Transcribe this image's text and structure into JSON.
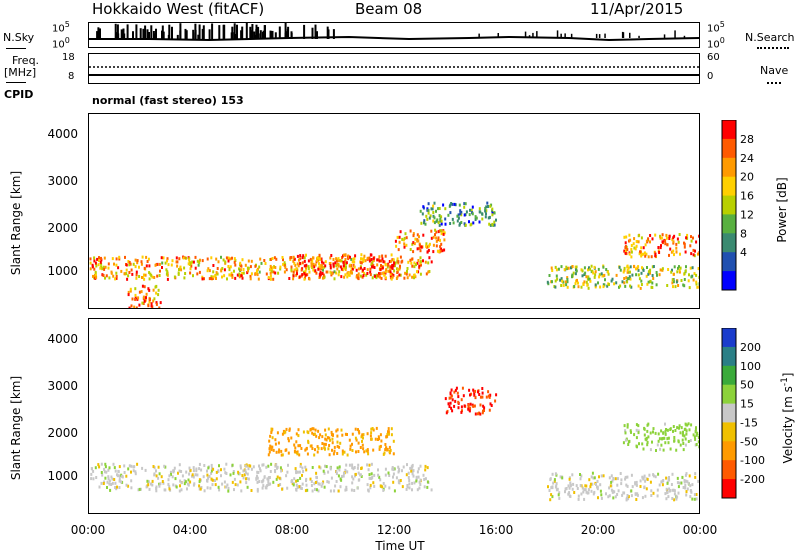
{
  "header": {
    "station": "Hokkaido West (fitACF)",
    "beam": "Beam 08",
    "date": "11/Apr/2015"
  },
  "nsky": {
    "label": "N.Sky",
    "left_ticks": [
      "10^5",
      "10^0"
    ],
    "right_ticks": [
      "10^5",
      "10^0"
    ],
    "right_label": "N.Search"
  },
  "freq": {
    "label": "Freq.",
    "unit": "[MHz]",
    "left_ticks": [
      "18",
      "8"
    ],
    "right_ticks": [
      "60",
      "0"
    ],
    "right_label": "Nave"
  },
  "cpid": {
    "label": "CPID",
    "text": "normal (fast stereo) 153"
  },
  "time_axis": {
    "label": "Time UT",
    "ticks": [
      "00:00",
      "04:00",
      "08:00",
      "12:00",
      "16:00",
      "20:00",
      "00:00"
    ]
  },
  "chart_data": [
    {
      "type": "heatmap",
      "title": "",
      "xlabel": "Time UT",
      "ylabel": "Slant Range [km]",
      "ylim": [
        180,
        4500
      ],
      "xlim": [
        "00:00",
        "24:00"
      ],
      "yticks": [
        "4000",
        "3000",
        "2000",
        "1000"
      ],
      "colorbar": {
        "label": "Power [dB]",
        "ticks": [
          "28",
          "24",
          "20",
          "16",
          "12",
          "8",
          "4"
        ],
        "colors": [
          "#ff0000",
          "#ff5a00",
          "#ff9a00",
          "#ffd000",
          "#b8d000",
          "#58b040",
          "#3a8a70",
          "#2050b0",
          "#0000ff"
        ]
      },
      "bands": [
        {
          "t_start": 0.0,
          "t_end": 13.5,
          "range_center": 1100,
          "level": 20
        },
        {
          "t_start": 1.5,
          "t_end": 2.8,
          "range_center": 450,
          "level": 22
        },
        {
          "t_start": 8.0,
          "t_end": 12.0,
          "range_center": 1150,
          "level": 25
        },
        {
          "t_start": 12.0,
          "t_end": 14.0,
          "range_center": 1700,
          "level": 22
        },
        {
          "t_start": 13.0,
          "t_end": 16.0,
          "range_center": 2300,
          "level": 8
        },
        {
          "t_start": 18.0,
          "t_end": 24.0,
          "range_center": 900,
          "level": 14
        },
        {
          "t_start": 21.0,
          "t_end": 24.0,
          "range_center": 1600,
          "level": 22
        }
      ]
    },
    {
      "type": "heatmap",
      "title": "",
      "xlabel": "Time UT",
      "ylabel": "Slant Range [km]",
      "ylim": [
        180,
        4500
      ],
      "xlim": [
        "00:00",
        "24:00"
      ],
      "yticks": [
        "4000",
        "3000",
        "2000",
        "1000"
      ],
      "colorbar": {
        "label": "Velocity [m s^-1]",
        "ticks": [
          "200",
          "100",
          "50",
          "15",
          "-15",
          "-50",
          "-100",
          "-200"
        ],
        "colors": [
          "#1a3ccc",
          "#2a7f86",
          "#3aaa3a",
          "#8cd23a",
          "#c8c8c8",
          "#f0c000",
          "#ff9a00",
          "#ff5a00",
          "#ff0000"
        ]
      },
      "bands": [
        {
          "t_start": 0.0,
          "t_end": 13.5,
          "range_center": 1000,
          "velocity": 0
        },
        {
          "t_start": 7.0,
          "t_end": 12.0,
          "range_center": 1800,
          "velocity": -60
        },
        {
          "t_start": 14.0,
          "t_end": 16.0,
          "range_center": 2700,
          "velocity": -200
        },
        {
          "t_start": 18.0,
          "t_end": 24.0,
          "range_center": 800,
          "velocity": 0
        },
        {
          "t_start": 21.0,
          "t_end": 24.0,
          "range_center": 1900,
          "velocity": 30
        }
      ]
    }
  ]
}
